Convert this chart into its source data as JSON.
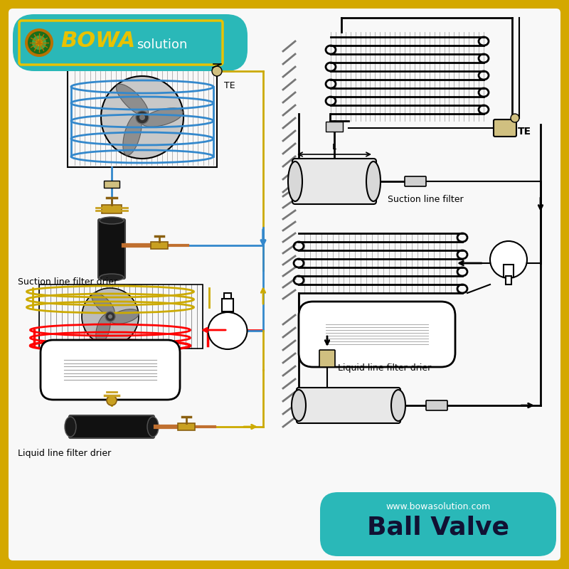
{
  "bg_outer": "#d4a800",
  "bg_inner": "#f8f8f8",
  "teal_color": "#2ab8b8",
  "gold_color": "#d4a800",
  "gold_logo": "#e8c200",
  "blue_line": "#3388cc",
  "red_line": "#cc2222",
  "gold_line": "#ccaa00",
  "copper_color": "#c07030",
  "title": "Ball Valve",
  "website": "www.bowasolution.com",
  "label_suction_drier": "Suction line filter drier",
  "label_liquid_drier": "Liquid line filter drier",
  "label_suction_filter": "Suction line filter",
  "label_liquid_filter_drier": "Liquid line filter drier",
  "te_label": "TE"
}
